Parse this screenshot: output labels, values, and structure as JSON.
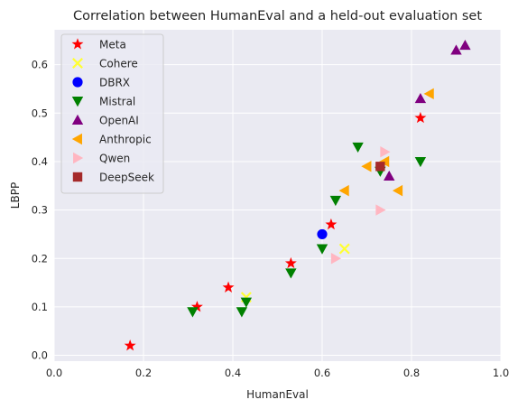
{
  "chart_data": {
    "type": "scatter",
    "title": "Correlation between HumanEval and a held-out evaluation set",
    "xlabel": "HumanEval",
    "ylabel": "LBPP",
    "xlim": [
      0.0,
      1.0
    ],
    "ylim": [
      -0.012,
      0.672
    ],
    "xticks": [
      0.0,
      0.2,
      0.4,
      0.6,
      0.8,
      1.0
    ],
    "xtick_labels": [
      "0.0",
      "0.2",
      "0.4",
      "0.6",
      "0.8",
      "1.0"
    ],
    "yticks": [
      0.0,
      0.1,
      0.2,
      0.3,
      0.4,
      0.5,
      0.6
    ],
    "ytick_labels": [
      "0.0",
      "0.1",
      "0.2",
      "0.3",
      "0.4",
      "0.5",
      "0.6"
    ],
    "grid": true,
    "legend_position": "top-left",
    "background_color": "#eaeaf2",
    "grid_color": "#ffffff",
    "series": [
      {
        "name": "Meta",
        "marker": "star",
        "color": "#ff0000",
        "points": [
          [
            0.17,
            0.02
          ],
          [
            0.32,
            0.1
          ],
          [
            0.39,
            0.14
          ],
          [
            0.53,
            0.19
          ],
          [
            0.62,
            0.27
          ],
          [
            0.82,
            0.49
          ]
        ]
      },
      {
        "name": "Cohere",
        "marker": "x",
        "color": "#ffff33",
        "points": [
          [
            0.43,
            0.12
          ],
          [
            0.65,
            0.22
          ]
        ]
      },
      {
        "name": "DBRX",
        "marker": "circle",
        "color": "#0000ff",
        "points": [
          [
            0.6,
            0.25
          ]
        ]
      },
      {
        "name": "Mistral",
        "marker": "triangle-down",
        "color": "#008000",
        "points": [
          [
            0.31,
            0.09
          ],
          [
            0.42,
            0.09
          ],
          [
            0.43,
            0.11
          ],
          [
            0.53,
            0.17
          ],
          [
            0.6,
            0.22
          ],
          [
            0.63,
            0.32
          ],
          [
            0.68,
            0.43
          ],
          [
            0.73,
            0.38
          ],
          [
            0.82,
            0.4
          ]
        ]
      },
      {
        "name": "OpenAI",
        "marker": "triangle-up",
        "color": "#800080",
        "points": [
          [
            0.75,
            0.37
          ],
          [
            0.82,
            0.53
          ],
          [
            0.9,
            0.63
          ],
          [
            0.92,
            0.64
          ]
        ]
      },
      {
        "name": "Anthropic",
        "marker": "triangle-left",
        "color": "#ffa500",
        "points": [
          [
            0.65,
            0.34
          ],
          [
            0.7,
            0.39
          ],
          [
            0.74,
            0.4
          ],
          [
            0.77,
            0.34
          ],
          [
            0.84,
            0.54
          ]
        ]
      },
      {
        "name": "Qwen",
        "marker": "triangle-right",
        "color": "#ffb6c1",
        "points": [
          [
            0.63,
            0.2
          ],
          [
            0.73,
            0.3
          ],
          [
            0.74,
            0.42
          ]
        ]
      },
      {
        "name": "DeepSeek",
        "marker": "square",
        "color": "#a52a2a",
        "points": [
          [
            0.73,
            0.39
          ]
        ]
      }
    ]
  }
}
